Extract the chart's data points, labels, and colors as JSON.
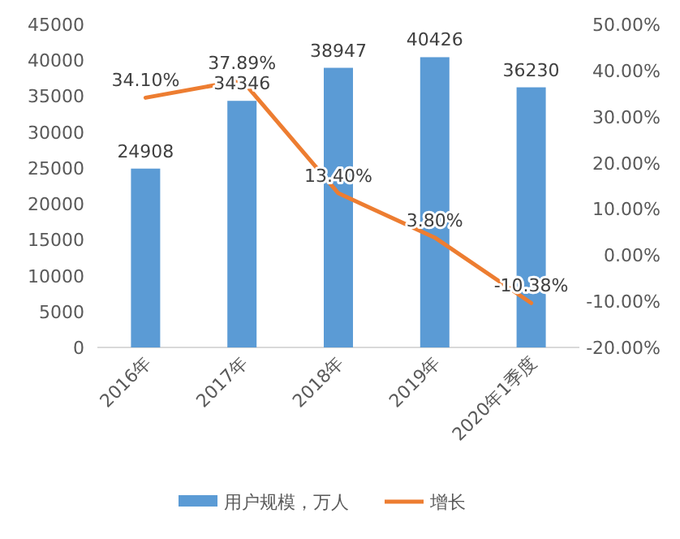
{
  "chart_data": {
    "type": "bar",
    "categories": [
      "2016年",
      "2017年",
      "2018年",
      "2019年",
      "2020年1季度"
    ],
    "series": [
      {
        "name": "用户规模，万人",
        "color": "#5b9bd5",
        "values": [
          24908,
          34346,
          38947,
          40426,
          36230
        ],
        "value_labels": [
          "24908",
          "34346",
          "38947",
          "40426",
          "36230"
        ]
      },
      {
        "name": "增长",
        "type": "line",
        "axis": "y2",
        "color": "#ed7d31",
        "values": [
          34.1,
          37.89,
          13.4,
          3.8,
          -10.38
        ],
        "value_labels": [
          "34.10%",
          "37.89%",
          "13.40%",
          "3.80%",
          "-10.38%"
        ]
      }
    ],
    "ylim": [
      0,
      45000
    ],
    "yticks": [
      0,
      5000,
      10000,
      15000,
      20000,
      25000,
      30000,
      35000,
      40000,
      45000
    ],
    "y2lim": [
      -20,
      50
    ],
    "y2ticks": [
      {
        "value": -20,
        "label": "-20.00%"
      },
      {
        "value": -10,
        "label": "-10.00%"
      },
      {
        "value": 0,
        "label": "0.00%"
      },
      {
        "value": 10,
        "label": "10.00%"
      },
      {
        "value": 20,
        "label": "20.00%"
      },
      {
        "value": 30,
        "label": "30.00%"
      },
      {
        "value": 40,
        "label": "40.00%"
      },
      {
        "value": 50,
        "label": "50.00%"
      }
    ],
    "legend": "bottom",
    "marker": "none",
    "line_style": "solid"
  }
}
